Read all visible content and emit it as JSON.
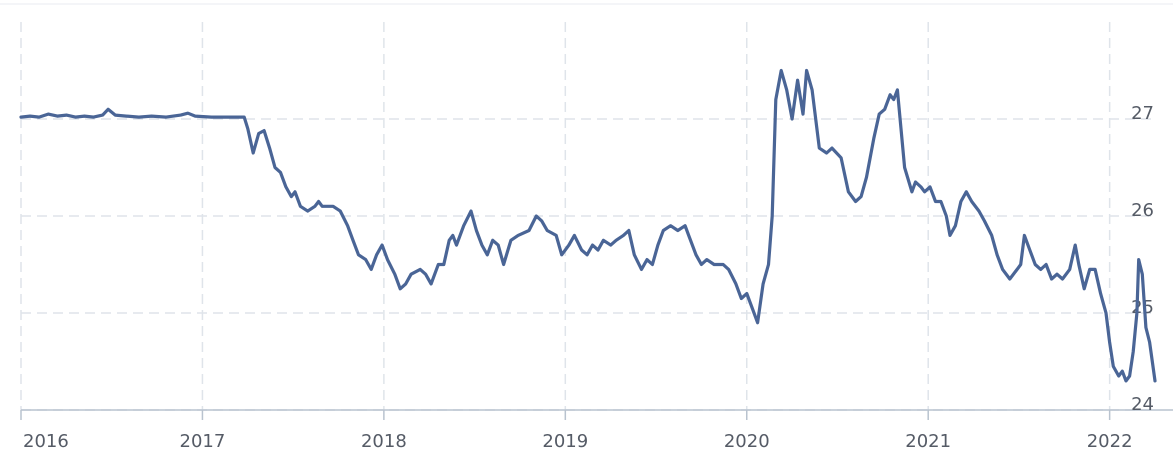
{
  "chart_data": {
    "type": "line",
    "title": "",
    "xlabel": "",
    "ylabel": "",
    "ylim": [
      24,
      28
    ],
    "xlim": [
      2016.0,
      2022.25
    ],
    "x_ticks": [
      "2016",
      "2017",
      "2018",
      "2019",
      "2020",
      "2021",
      "2022"
    ],
    "y_ticks": [
      "24",
      "25",
      "26",
      "27"
    ],
    "grid": true,
    "y_axis_side": "right",
    "line_color": "#4a6596",
    "series": [
      {
        "name": "",
        "points": [
          [
            2016.0,
            27.02
          ],
          [
            2016.05,
            27.03
          ],
          [
            2016.1,
            27.02
          ],
          [
            2016.15,
            27.05
          ],
          [
            2016.2,
            27.03
          ],
          [
            2016.25,
            27.04
          ],
          [
            2016.3,
            27.02
          ],
          [
            2016.35,
            27.03
          ],
          [
            2016.4,
            27.02
          ],
          [
            2016.45,
            27.04
          ],
          [
            2016.48,
            27.1
          ],
          [
            2016.52,
            27.04
          ],
          [
            2016.58,
            27.03
          ],
          [
            2016.65,
            27.02
          ],
          [
            2016.72,
            27.03
          ],
          [
            2016.8,
            27.02
          ],
          [
            2016.88,
            27.04
          ],
          [
            2016.92,
            27.06
          ],
          [
            2016.96,
            27.03
          ],
          [
            2017.05,
            27.02
          ],
          [
            2017.15,
            27.02
          ],
          [
            2017.23,
            27.02
          ],
          [
            2017.25,
            26.9
          ],
          [
            2017.28,
            26.65
          ],
          [
            2017.31,
            26.85
          ],
          [
            2017.34,
            26.88
          ],
          [
            2017.37,
            26.7
          ],
          [
            2017.4,
            26.5
          ],
          [
            2017.43,
            26.45
          ],
          [
            2017.46,
            26.3
          ],
          [
            2017.49,
            26.2
          ],
          [
            2017.51,
            26.25
          ],
          [
            2017.54,
            26.1
          ],
          [
            2017.58,
            26.05
          ],
          [
            2017.62,
            26.1
          ],
          [
            2017.64,
            26.15
          ],
          [
            2017.66,
            26.1
          ],
          [
            2017.72,
            26.1
          ],
          [
            2017.76,
            26.05
          ],
          [
            2017.8,
            25.9
          ],
          [
            2017.83,
            25.75
          ],
          [
            2017.86,
            25.6
          ],
          [
            2017.9,
            25.55
          ],
          [
            2017.93,
            25.45
          ],
          [
            2017.96,
            25.6
          ],
          [
            2017.99,
            25.7
          ],
          [
            2018.02,
            25.55
          ],
          [
            2018.06,
            25.4
          ],
          [
            2018.09,
            25.25
          ],
          [
            2018.12,
            25.3
          ],
          [
            2018.15,
            25.4
          ],
          [
            2018.2,
            25.45
          ],
          [
            2018.23,
            25.4
          ],
          [
            2018.26,
            25.3
          ],
          [
            2018.3,
            25.5
          ],
          [
            2018.33,
            25.5
          ],
          [
            2018.36,
            25.75
          ],
          [
            2018.38,
            25.8
          ],
          [
            2018.4,
            25.7
          ],
          [
            2018.44,
            25.9
          ],
          [
            2018.48,
            26.05
          ],
          [
            2018.51,
            25.85
          ],
          [
            2018.54,
            25.7
          ],
          [
            2018.57,
            25.6
          ],
          [
            2018.6,
            25.75
          ],
          [
            2018.63,
            25.7
          ],
          [
            2018.66,
            25.5
          ],
          [
            2018.7,
            25.75
          ],
          [
            2018.74,
            25.8
          ],
          [
            2018.8,
            25.85
          ],
          [
            2018.84,
            26.0
          ],
          [
            2018.87,
            25.95
          ],
          [
            2018.9,
            25.85
          ],
          [
            2018.95,
            25.8
          ],
          [
            2018.98,
            25.6
          ],
          [
            2019.02,
            25.7
          ],
          [
            2019.05,
            25.8
          ],
          [
            2019.09,
            25.65
          ],
          [
            2019.12,
            25.6
          ],
          [
            2019.15,
            25.7
          ],
          [
            2019.18,
            25.65
          ],
          [
            2019.21,
            25.75
          ],
          [
            2019.25,
            25.7
          ],
          [
            2019.28,
            25.75
          ],
          [
            2019.32,
            25.8
          ],
          [
            2019.35,
            25.85
          ],
          [
            2019.38,
            25.6
          ],
          [
            2019.42,
            25.45
          ],
          [
            2019.45,
            25.55
          ],
          [
            2019.48,
            25.5
          ],
          [
            2019.51,
            25.7
          ],
          [
            2019.54,
            25.85
          ],
          [
            2019.58,
            25.9
          ],
          [
            2019.62,
            25.85
          ],
          [
            2019.66,
            25.9
          ],
          [
            2019.68,
            25.8
          ],
          [
            2019.72,
            25.6
          ],
          [
            2019.75,
            25.5
          ],
          [
            2019.78,
            25.55
          ],
          [
            2019.82,
            25.5
          ],
          [
            2019.87,
            25.5
          ],
          [
            2019.9,
            25.45
          ],
          [
            2019.94,
            25.3
          ],
          [
            2019.97,
            25.15
          ],
          [
            2020.0,
            25.2
          ],
          [
            2020.03,
            25.05
          ],
          [
            2020.06,
            24.9
          ],
          [
            2020.09,
            25.3
          ],
          [
            2020.12,
            25.5
          ],
          [
            2020.14,
            26.0
          ],
          [
            2020.16,
            27.2
          ],
          [
            2020.19,
            27.5
          ],
          [
            2020.22,
            27.3
          ],
          [
            2020.25,
            27.0
          ],
          [
            2020.28,
            27.4
          ],
          [
            2020.31,
            27.05
          ],
          [
            2020.33,
            27.5
          ],
          [
            2020.36,
            27.3
          ],
          [
            2020.4,
            26.7
          ],
          [
            2020.44,
            26.65
          ],
          [
            2020.47,
            26.7
          ],
          [
            2020.52,
            26.6
          ],
          [
            2020.56,
            26.25
          ],
          [
            2020.6,
            26.15
          ],
          [
            2020.63,
            26.2
          ],
          [
            2020.66,
            26.4
          ],
          [
            2020.7,
            26.8
          ],
          [
            2020.73,
            27.05
          ],
          [
            2020.76,
            27.1
          ],
          [
            2020.79,
            27.25
          ],
          [
            2020.81,
            27.2
          ],
          [
            2020.83,
            27.3
          ],
          [
            2020.87,
            26.5
          ],
          [
            2020.91,
            26.25
          ],
          [
            2020.93,
            26.35
          ],
          [
            2020.96,
            26.3
          ],
          [
            2020.98,
            26.25
          ],
          [
            2021.01,
            26.3
          ],
          [
            2021.04,
            26.15
          ],
          [
            2021.07,
            26.15
          ],
          [
            2021.1,
            26.0
          ],
          [
            2021.12,
            25.8
          ],
          [
            2021.15,
            25.9
          ],
          [
            2021.18,
            26.15
          ],
          [
            2021.21,
            26.25
          ],
          [
            2021.24,
            26.15
          ],
          [
            2021.28,
            26.05
          ],
          [
            2021.31,
            25.95
          ],
          [
            2021.35,
            25.8
          ],
          [
            2021.38,
            25.6
          ],
          [
            2021.41,
            25.45
          ],
          [
            2021.45,
            25.35
          ],
          [
            2021.49,
            25.45
          ],
          [
            2021.51,
            25.5
          ],
          [
            2021.53,
            25.8
          ],
          [
            2021.56,
            25.65
          ],
          [
            2021.59,
            25.5
          ],
          [
            2021.62,
            25.45
          ],
          [
            2021.65,
            25.5
          ],
          [
            2021.68,
            25.35
          ],
          [
            2021.71,
            25.4
          ],
          [
            2021.74,
            25.35
          ],
          [
            2021.78,
            25.45
          ],
          [
            2021.81,
            25.7
          ],
          [
            2021.83,
            25.5
          ],
          [
            2021.86,
            25.25
          ],
          [
            2021.89,
            25.45
          ],
          [
            2021.92,
            25.45
          ],
          [
            2021.95,
            25.2
          ],
          [
            2021.98,
            25.0
          ],
          [
            2022.0,
            24.7
          ],
          [
            2022.02,
            24.45
          ],
          [
            2022.05,
            24.35
          ],
          [
            2022.07,
            24.4
          ],
          [
            2022.09,
            24.3
          ],
          [
            2022.11,
            24.35
          ],
          [
            2022.13,
            24.6
          ],
          [
            2022.15,
            25.0
          ],
          [
            2022.16,
            25.55
          ],
          [
            2022.18,
            25.4
          ],
          [
            2022.2,
            24.85
          ],
          [
            2022.22,
            24.7
          ],
          [
            2022.25,
            24.3
          ]
        ]
      }
    ]
  }
}
